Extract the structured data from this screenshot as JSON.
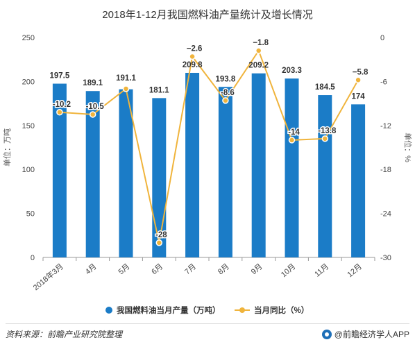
{
  "chart_data": {
    "type": "bar",
    "title": "2018年1-12月我国燃料油产量统计及增长情况",
    "categories": [
      "2018年3月",
      "4月",
      "5月",
      "6月",
      "7月",
      "8月",
      "9月",
      "10月",
      "11月",
      "12月"
    ],
    "series": [
      {
        "name": "我国燃料油当月产量（万吨）",
        "type": "bar",
        "axis": "left",
        "values": [
          197.5,
          189.1,
          191.1,
          181.1,
          209.8,
          193.8,
          209.2,
          203.3,
          184.5,
          174
        ],
        "color": "#1b7cc7"
      },
      {
        "name": "当月同比（%）",
        "type": "line",
        "axis": "right",
        "values": [
          -10.2,
          -10.5,
          -7,
          -28,
          -2.6,
          -8.6,
          -1.8,
          -14,
          -13.8,
          -5.8
        ],
        "labels": [
          "-10.2",
          "-10.5",
          "",
          "-28",
          "−2.6",
          "-8.6",
          "−1.8",
          "-14",
          "-13.8",
          "−5.8"
        ],
        "color": "#f0b43c"
      }
    ],
    "y_left": {
      "label": "单位：万吨",
      "ylim": [
        0,
        250
      ],
      "ticks": [
        0,
        50,
        100,
        150,
        200,
        250
      ]
    },
    "y_right": {
      "label": "单位：%",
      "ylim": [
        -30,
        0
      ],
      "ticks": [
        0,
        -6,
        -12,
        -18,
        -24,
        -30
      ]
    },
    "grid": false,
    "legend": "bottom"
  },
  "footer": {
    "source": "资料来源：前瞻产业研究院整理",
    "brand": "@前瞻经济学人APP"
  }
}
